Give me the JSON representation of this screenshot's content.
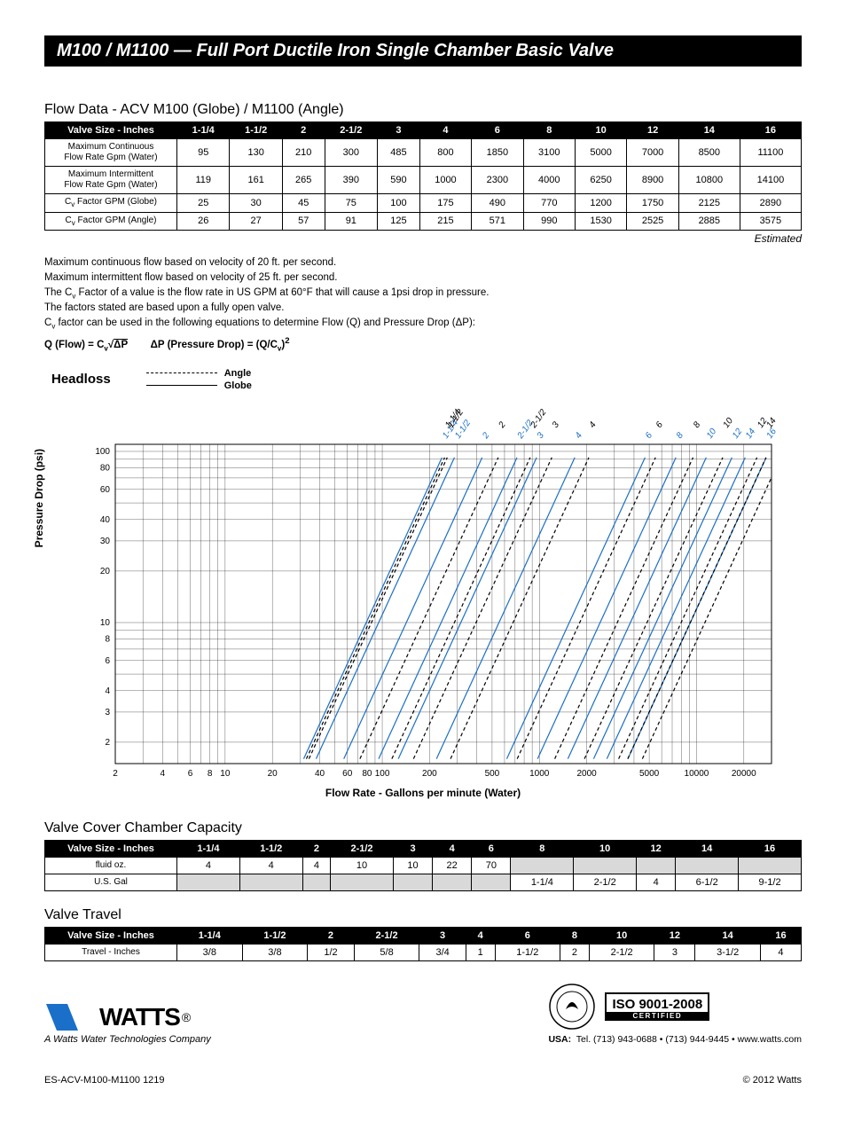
{
  "title": "M100 / M1100 — Full Port Ductile Iron Single Chamber Basic Valve",
  "flowData": {
    "heading": "Flow Data - ACV M100 (Globe) / M1100 (Angle)",
    "headerLabel": "Valve Size - Inches",
    "sizes": [
      "1-1/4",
      "1-1/2",
      "2",
      "2-1/2",
      "3",
      "4",
      "6",
      "8",
      "10",
      "12",
      "14",
      "16"
    ],
    "rows": [
      {
        "label": "Maximum Continuous<br>Flow Rate Gpm (Water)",
        "vals": [
          "95",
          "130",
          "210",
          "300",
          "485",
          "800",
          "1850",
          "3100",
          "5000",
          "7000",
          "8500",
          "11100"
        ]
      },
      {
        "label": "Maximum Intermittent<br>Flow Rate Gpm (Water)",
        "vals": [
          "119",
          "161",
          "265",
          "390",
          "590",
          "1000",
          "2300",
          "4000",
          "6250",
          "8900",
          "10800",
          "14100"
        ]
      },
      {
        "label": "C<sub>v</sub> Factor GPM (Globe)",
        "vals": [
          "25",
          "30",
          "45",
          "75",
          "100",
          "175",
          "490",
          "770",
          "1200",
          "1750",
          "2125",
          "2890"
        ]
      },
      {
        "label": "C<sub>v</sub> Factor GPM (Angle)",
        "vals": [
          "26",
          "27",
          "57",
          "91",
          "125",
          "215",
          "571",
          "990",
          "1530",
          "2525",
          "2885",
          "3575"
        ]
      }
    ],
    "estimated": "Estimated"
  },
  "notes": [
    "Maximum continuous flow based on velocity of 20 ft. per second.",
    "Maximum intermittent flow based on velocity of 25 ft. per second.",
    "The C<sub>v</sub> Factor of a value is the flow rate in US GPM at 60°F that will cause a 1psi drop in pressure.",
    "The factors stated are based upon a fully open valve.",
    "C<sub>v</sub> factor can be used in the following equations to determine Flow (Q) and Pressure Drop (ΔP):"
  ],
  "equation": "Q (Flow) = C<sub>v</sub>√<span style='text-decoration:overline'>ΔP</span>&nbsp;&nbsp;&nbsp;&nbsp;&nbsp;&nbsp;&nbsp;&nbsp;ΔP (Pressure Drop) = (Q/C<sub>v</sub>)<sup>2</sup>",
  "chart": {
    "title": "Headloss",
    "legend": {
      "angle": "Angle",
      "globe": "Globe"
    },
    "yLabel": "Pressure Drop (psi)",
    "xLabel": "Flow Rate - Gallons per minute (Water)",
    "yTicks": [
      "100",
      "80",
      "60",
      "40",
      "30",
      "20",
      "10",
      "8",
      "6",
      "4",
      "3",
      "2"
    ],
    "xTicks": [
      "2",
      "4",
      "6",
      "8",
      "10",
      "20",
      "40",
      "60",
      "80",
      "100",
      "200",
      "500",
      "1000",
      "2000",
      "5000",
      "10000",
      "20000"
    ],
    "topLabelsBlue": [
      "1-1/4",
      "1-1/2",
      "2",
      "2-1/2",
      "3",
      "4",
      "6",
      "8",
      "10",
      "12",
      "14",
      "16"
    ],
    "topLabelsBlack": [
      "1-1/4",
      "1-1/2",
      "2",
      "2-1/2",
      "3",
      "4",
      "6",
      "8",
      "10",
      "12",
      "14",
      "16"
    ],
    "line_color_globe": "#1a6fc9",
    "line_color_angle": "#000000",
    "grid_color": "#000000",
    "background": "#ffffff"
  },
  "chamberCapacity": {
    "heading": "Valve Cover Chamber Capacity",
    "headerLabel": "Valve Size - Inches",
    "sizes": [
      "1-1/4",
      "1-1/2",
      "2",
      "2-1/2",
      "3",
      "4",
      "6",
      "8",
      "10",
      "12",
      "14",
      "16"
    ],
    "rows": [
      {
        "label": "fluid oz.",
        "vals": [
          "4",
          "4",
          "4",
          "10",
          "10",
          "22",
          "70",
          "",
          "",
          "",
          "",
          ""
        ],
        "shadeFrom": 7
      },
      {
        "label": "U.S. Gal",
        "vals": [
          "",
          "",
          "",
          "",
          "",
          "",
          "",
          "1-1/4",
          "2-1/2",
          "4",
          "6-1/2",
          "9-1/2"
        ],
        "shadeTo": 7
      }
    ]
  },
  "valveTravel": {
    "heading": "Valve Travel",
    "headerLabel": "Valve Size - Inches",
    "sizes": [
      "1-1/4",
      "1-1/2",
      "2",
      "2-1/2",
      "3",
      "4",
      "6",
      "8",
      "10",
      "12",
      "14",
      "16"
    ],
    "row": {
      "label": "Travel - Inches",
      "vals": [
        "3/8",
        "3/8",
        "1/2",
        "5/8",
        "3/4",
        "1",
        "1-1/2",
        "2",
        "2-1/2",
        "3",
        "3-1/2",
        "4"
      ]
    }
  },
  "footer": {
    "logoText": "WATTS",
    "tagline": "A Watts Water Technologies Company",
    "iso": "ISO 9001-2008",
    "isoSub": "CERTIFIED",
    "contact": "USA:  Tel. (713) 943-0688 • (713) 944-9445 • www.watts.com",
    "docId": "ES-ACV-M100-M1100   1219",
    "copyright": "© 2012 Watts"
  }
}
